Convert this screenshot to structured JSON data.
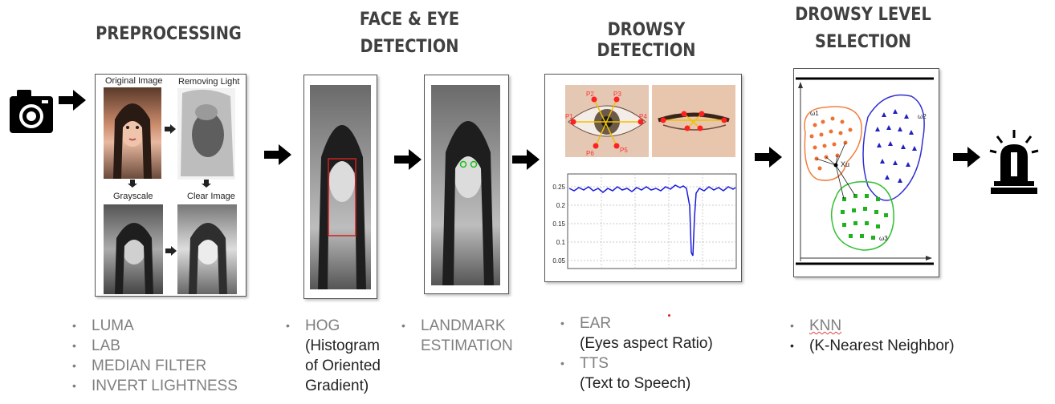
{
  "headings": {
    "preprocessing": "PREPROCESSING",
    "face_eye_1": "FACE & EYE",
    "face_eye_2": "DETECTION",
    "drowsy_detection": "DROWSY DETECTION",
    "drowsy_level_1": "DROWSY LEVEL",
    "drowsy_level_2": "SELECTION"
  },
  "preprocessing_captions": {
    "original": "Original Image",
    "removing": "Removing Light",
    "grayscale": "Grayscale",
    "clear": "Clear Image"
  },
  "eye_labels": [
    "P2",
    "P3",
    "P1",
    "P4",
    "P6",
    "P5"
  ],
  "ear_chart": {
    "y_ticks": [
      "0.25",
      "0.2",
      "0.15",
      "0.1",
      "0.05"
    ]
  },
  "knn_labels": {
    "class1": "ω1",
    "class2": "ω2",
    "class3": "ω3",
    "query": "Xu"
  },
  "bullets": {
    "preprocessing": [
      "LUMA",
      "LAB",
      "MEDIAN FILTER",
      "INVERT LIGHTNESS"
    ],
    "hog": {
      "label": "HOG",
      "line1": "(Histogram",
      "line2": "of Oriented",
      "line3": "Gradient)"
    },
    "landmark": {
      "line1": "LANDMARK",
      "line2": "ESTIMATION"
    },
    "ear": {
      "label": "EAR",
      "sub": "(Eyes aspect Ratio)"
    },
    "tts": {
      "label": "TTS",
      "sub": "(Text to Speech)"
    },
    "knn": {
      "label": "KNN",
      "sub": "(K-Nearest Neighbor)"
    }
  },
  "colors": {
    "heading": "#404040",
    "bullet_gray": "#7f7f7f",
    "ear_line": "#1a1adc",
    "alarm": "#000000"
  }
}
